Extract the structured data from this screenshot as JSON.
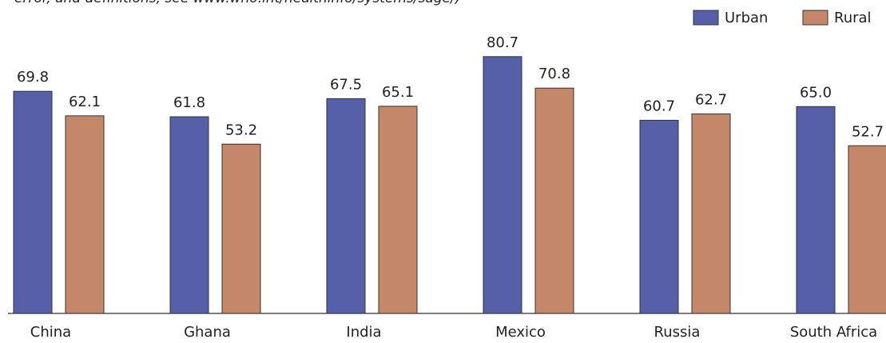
{
  "chart_data": {
    "type": "bar",
    "note": "error, and definitions, see www.who.int/healthinfo/systems/sage/)",
    "categories": [
      "China",
      "Ghana",
      "India",
      "Mexico",
      "Russia",
      "South Africa"
    ],
    "series": [
      {
        "name": "Urban",
        "color": "#5560a8",
        "values": [
          69.8,
          61.8,
          67.5,
          80.7,
          60.7,
          65.0
        ],
        "value_labels": [
          "69.8",
          "61.8",
          "67.5",
          "80.7",
          "60.7",
          "65.0"
        ]
      },
      {
        "name": "Rural",
        "color": "#c4876a",
        "values": [
          62.1,
          53.2,
          65.1,
          70.8,
          62.7,
          52.7
        ],
        "value_labels": [
          "62.1",
          "53.2",
          "65.1",
          "70.8",
          "62.7",
          "52.7"
        ]
      }
    ],
    "ylim": [
      0,
      100
    ],
    "legend": "top-right"
  }
}
